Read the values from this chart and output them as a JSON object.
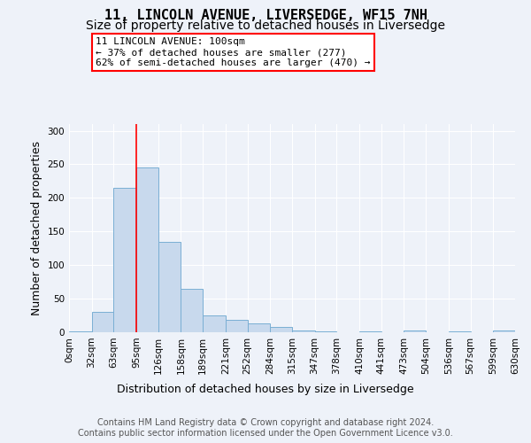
{
  "title_line1": "11, LINCOLN AVENUE, LIVERSEDGE, WF15 7NH",
  "title_line2": "Size of property relative to detached houses in Liversedge",
  "xlabel": "Distribution of detached houses by size in Liversedge",
  "ylabel": "Number of detached properties",
  "bar_color": "#c8d9ed",
  "bar_edge_color": "#7aafd4",
  "bar_values": [
    1,
    30,
    215,
    246,
    135,
    65,
    25,
    18,
    13,
    8,
    3,
    1,
    0,
    1,
    0,
    2,
    0,
    1,
    0,
    2
  ],
  "bin_labels": [
    "0sqm",
    "32sqm",
    "63sqm",
    "95sqm",
    "126sqm",
    "158sqm",
    "189sqm",
    "221sqm",
    "252sqm",
    "284sqm",
    "315sqm",
    "347sqm",
    "378sqm",
    "410sqm",
    "441sqm",
    "473sqm",
    "504sqm",
    "536sqm",
    "567sqm",
    "599sqm",
    "630sqm"
  ],
  "bin_edges": [
    0,
    32,
    63,
    95,
    126,
    158,
    189,
    221,
    252,
    284,
    315,
    347,
    378,
    410,
    441,
    473,
    504,
    536,
    567,
    599,
    630
  ],
  "ylim": [
    0,
    310
  ],
  "yticks": [
    0,
    50,
    100,
    150,
    200,
    250,
    300
  ],
  "annotation_title": "11 LINCOLN AVENUE: 100sqm",
  "annotation_line2": "← 37% of detached houses are smaller (277)",
  "annotation_line3": "62% of semi-detached houses are larger (470) →",
  "vline_x": 95,
  "footer_line1": "Contains HM Land Registry data © Crown copyright and database right 2024.",
  "footer_line2": "Contains public sector information licensed under the Open Government Licence v3.0.",
  "background_color": "#eef2f9",
  "plot_bg_color": "#eef2f9",
  "grid_color": "#ffffff",
  "title_fontsize": 11,
  "subtitle_fontsize": 10,
  "axis_label_fontsize": 9,
  "tick_fontsize": 7.5,
  "footer_fontsize": 7,
  "annotation_fontsize": 8
}
